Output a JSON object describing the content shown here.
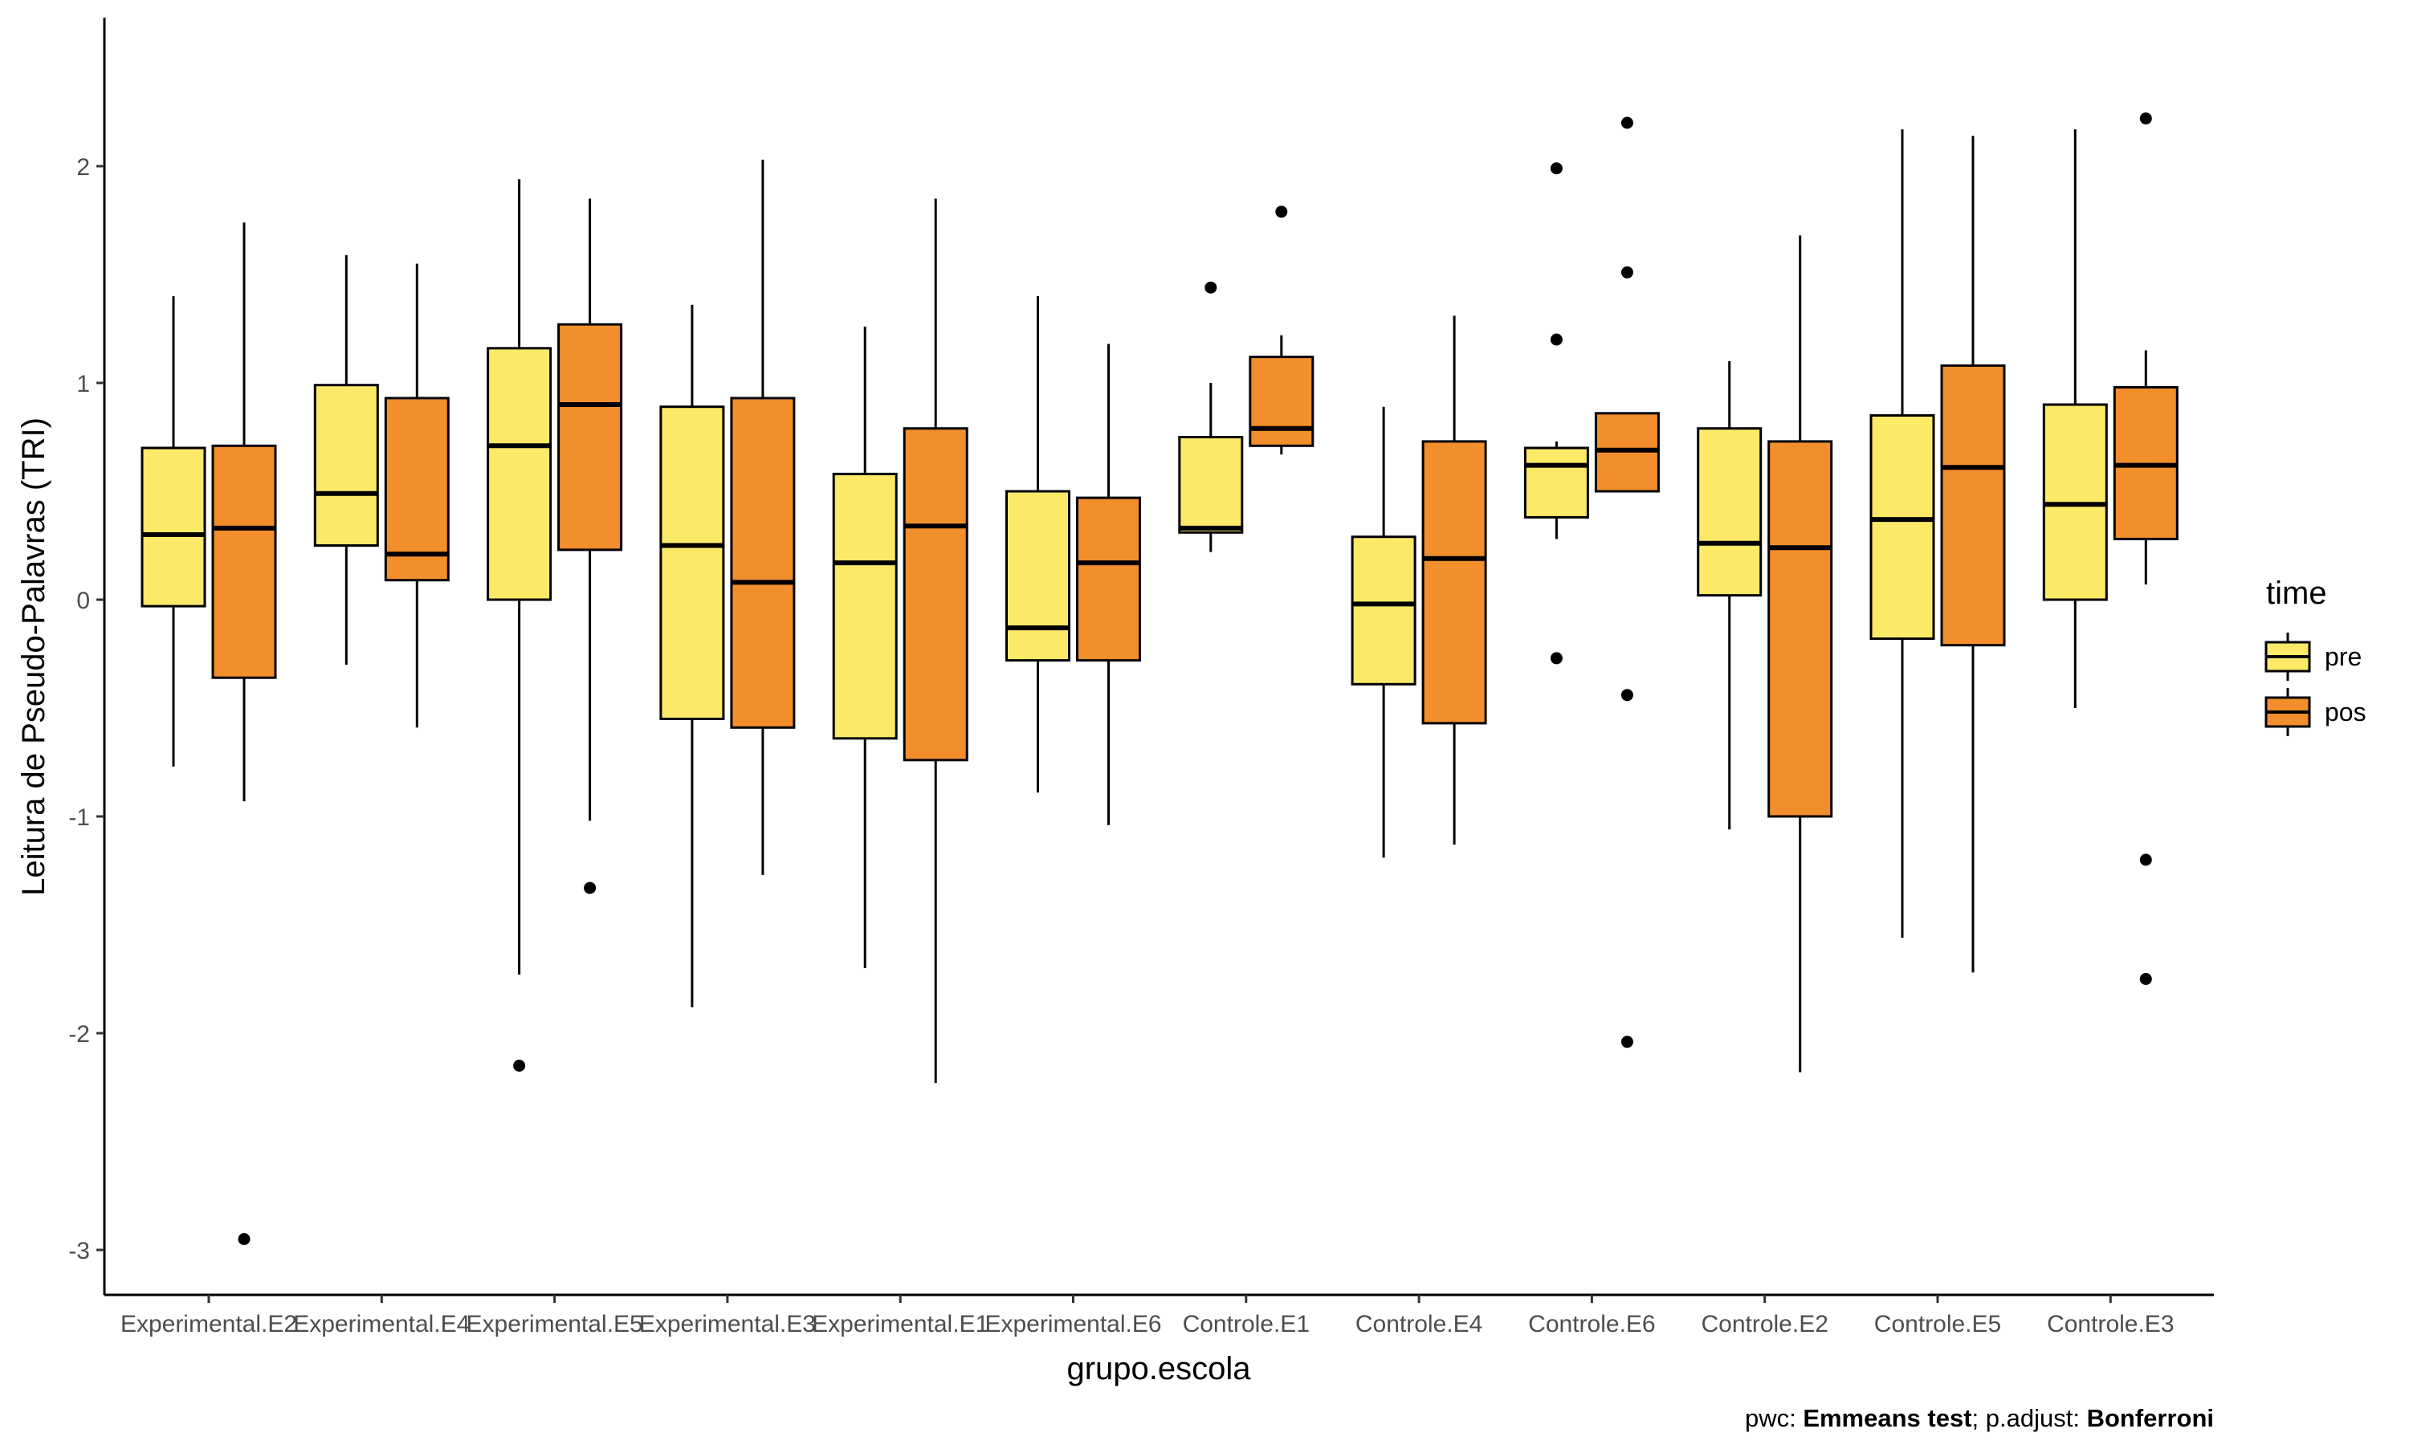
{
  "chart_data": {
    "type": "boxplot",
    "xlabel": "grupo.escola",
    "ylabel": "Leitura de Pseudo-Palavras (TRI)",
    "ylim": [
      -3.2,
      2.7
    ],
    "yticks": [
      -3,
      -2,
      -1,
      0,
      1,
      2
    ],
    "grid": false,
    "legend": {
      "title": "time",
      "placement": "right",
      "entries": [
        {
          "key": "pre",
          "label": "pre",
          "color": "#FDE968"
        },
        {
          "key": "pos",
          "label": "pos",
          "color": "#F28E2B"
        }
      ]
    },
    "caption": {
      "part1": "pwc: ",
      "part2": "Emmeans test",
      "part3": "; p.adjust: ",
      "part4": "Bonferroni"
    },
    "categories": [
      "Experimental.E2",
      "Experimental.E4",
      "Experimental.E5",
      "Experimental.E3",
      "Experimental.E1",
      "Experimental.E6",
      "Controle.E1",
      "Controle.E4",
      "Controle.E6",
      "Controle.E2",
      "Controle.E5",
      "Controle.E3"
    ],
    "series": [
      {
        "name": "pre",
        "color": "#FDE968",
        "boxes": [
          {
            "lower_whisker": -0.77,
            "q1": -0.03,
            "median": 0.3,
            "q3": 0.7,
            "upper_whisker": 1.4,
            "outliers": []
          },
          {
            "lower_whisker": -0.3,
            "q1": 0.25,
            "median": 0.49,
            "q3": 0.99,
            "upper_whisker": 1.59,
            "outliers": []
          },
          {
            "lower_whisker": -1.73,
            "q1": 0.0,
            "median": 0.71,
            "q3": 1.16,
            "upper_whisker": 1.94,
            "outliers": [
              -2.15
            ]
          },
          {
            "lower_whisker": -1.88,
            "q1": -0.55,
            "median": 0.25,
            "q3": 0.89,
            "upper_whisker": 1.36,
            "outliers": []
          },
          {
            "lower_whisker": -1.7,
            "q1": -0.64,
            "median": 0.17,
            "q3": 0.58,
            "upper_whisker": 1.26,
            "outliers": []
          },
          {
            "lower_whisker": -0.89,
            "q1": -0.28,
            "median": -0.13,
            "q3": 0.5,
            "upper_whisker": 1.4,
            "outliers": []
          },
          {
            "lower_whisker": 0.22,
            "q1": 0.31,
            "median": 0.33,
            "q3": 0.75,
            "upper_whisker": 1.0,
            "outliers": [
              1.44
            ]
          },
          {
            "lower_whisker": -1.19,
            "q1": -0.39,
            "median": -0.02,
            "q3": 0.29,
            "upper_whisker": 0.89,
            "outliers": []
          },
          {
            "lower_whisker": 0.28,
            "q1": 0.38,
            "median": 0.62,
            "q3": 0.7,
            "upper_whisker": 0.73,
            "outliers": [
              1.99,
              1.2,
              -0.27
            ]
          },
          {
            "lower_whisker": -1.06,
            "q1": 0.02,
            "median": 0.26,
            "q3": 0.79,
            "upper_whisker": 1.1,
            "outliers": []
          },
          {
            "lower_whisker": -1.56,
            "q1": -0.18,
            "median": 0.37,
            "q3": 0.85,
            "upper_whisker": 2.17,
            "outliers": []
          },
          {
            "lower_whisker": -0.5,
            "q1": 0.0,
            "median": 0.44,
            "q3": 0.9,
            "upper_whisker": 2.17,
            "outliers": []
          }
        ]
      },
      {
        "name": "pos",
        "color": "#F28E2B",
        "boxes": [
          {
            "lower_whisker": -0.93,
            "q1": -0.36,
            "median": 0.33,
            "q3": 0.71,
            "upper_whisker": 1.74,
            "outliers": [
              -2.95
            ]
          },
          {
            "lower_whisker": -0.59,
            "q1": 0.09,
            "median": 0.21,
            "q3": 0.93,
            "upper_whisker": 1.55,
            "outliers": []
          },
          {
            "lower_whisker": -1.02,
            "q1": 0.23,
            "median": 0.9,
            "q3": 1.27,
            "upper_whisker": 1.85,
            "outliers": [
              -1.33
            ]
          },
          {
            "lower_whisker": -1.27,
            "q1": -0.59,
            "median": 0.08,
            "q3": 0.93,
            "upper_whisker": 2.03,
            "outliers": []
          },
          {
            "lower_whisker": -2.23,
            "q1": -0.74,
            "median": 0.34,
            "q3": 0.79,
            "upper_whisker": 1.85,
            "outliers": []
          },
          {
            "lower_whisker": -1.04,
            "q1": -0.28,
            "median": 0.17,
            "q3": 0.47,
            "upper_whisker": 1.18,
            "outliers": []
          },
          {
            "lower_whisker": 0.67,
            "q1": 0.71,
            "median": 0.79,
            "q3": 1.12,
            "upper_whisker": 1.22,
            "outliers": [
              1.79
            ]
          },
          {
            "lower_whisker": -1.13,
            "q1": -0.57,
            "median": 0.19,
            "q3": 0.73,
            "upper_whisker": 1.31,
            "outliers": []
          },
          {
            "lower_whisker": 0.5,
            "q1": 0.5,
            "median": 0.69,
            "q3": 0.86,
            "upper_whisker": 0.86,
            "outliers": [
              2.2,
              1.51,
              -0.44,
              -2.04
            ]
          },
          {
            "lower_whisker": -2.18,
            "q1": -1.0,
            "median": 0.24,
            "q3": 0.73,
            "upper_whisker": 1.68,
            "outliers": []
          },
          {
            "lower_whisker": -1.72,
            "q1": -0.21,
            "median": 0.61,
            "q3": 1.08,
            "upper_whisker": 2.14,
            "outliers": []
          },
          {
            "lower_whisker": 0.07,
            "q1": 0.28,
            "median": 0.62,
            "q3": 0.98,
            "upper_whisker": 1.15,
            "outliers": [
              2.22,
              -1.2,
              -1.75
            ]
          }
        ]
      }
    ]
  }
}
